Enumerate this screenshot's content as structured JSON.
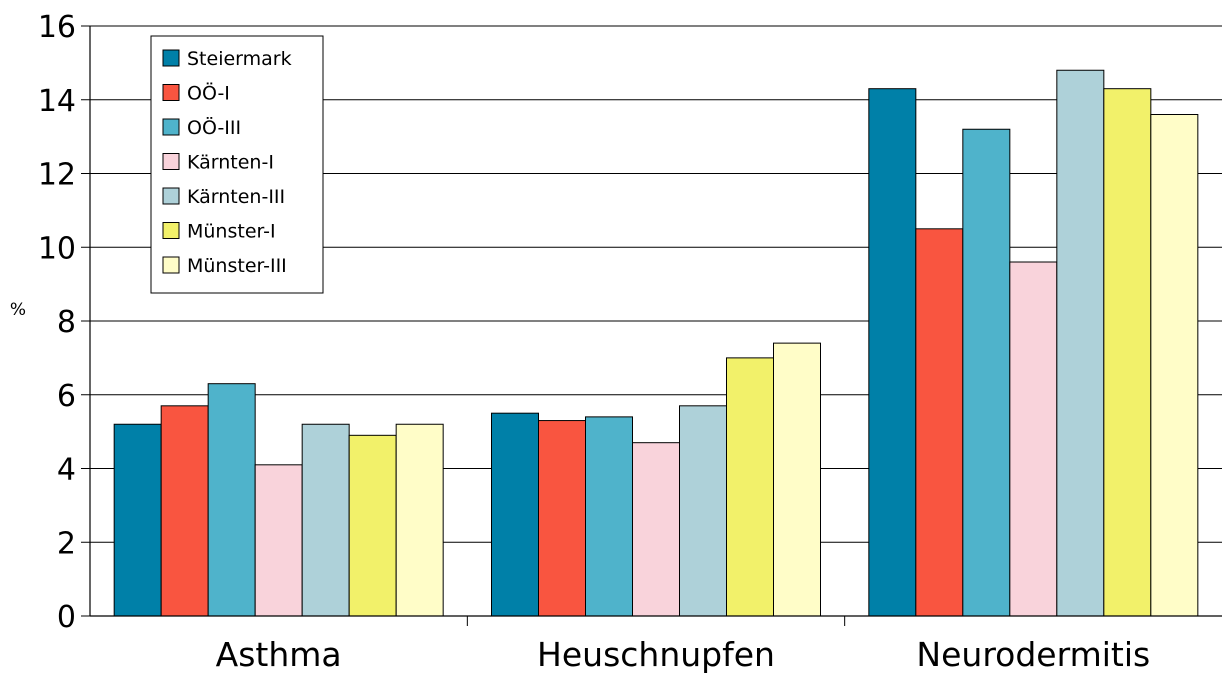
{
  "chart_data": {
    "type": "bar",
    "title": "",
    "xlabel": "",
    "ylabel": "%",
    "ylim": [
      0,
      16
    ],
    "yticks": [
      0,
      2,
      4,
      6,
      8,
      10,
      12,
      14,
      16
    ],
    "grid": true,
    "legend_position": "top-left",
    "categories": [
      "Asthma",
      "Heuschnupfen",
      "Neurodermitis"
    ],
    "series": [
      {
        "name": "Steiermark",
        "color": "#0080A8",
        "values": [
          5.2,
          5.5,
          14.3
        ]
      },
      {
        "name": "OÖ-I",
        "color": "#F95540",
        "values": [
          5.7,
          5.3,
          10.5
        ]
      },
      {
        "name": "OÖ-III",
        "color": "#4FB3CB",
        "values": [
          6.3,
          5.4,
          13.2
        ]
      },
      {
        "name": "Kärnten-I",
        "color": "#F9D3DB",
        "values": [
          4.1,
          4.7,
          9.6
        ]
      },
      {
        "name": "Kärnten-III",
        "color": "#AED1D9",
        "values": [
          5.2,
          5.7,
          14.8
        ]
      },
      {
        "name": "Münster-I",
        "color": "#F2F16A",
        "values": [
          4.9,
          7.0,
          14.3
        ]
      },
      {
        "name": "Münster-III",
        "color": "#FFFDC8",
        "values": [
          5.2,
          7.4,
          13.6
        ]
      }
    ]
  }
}
